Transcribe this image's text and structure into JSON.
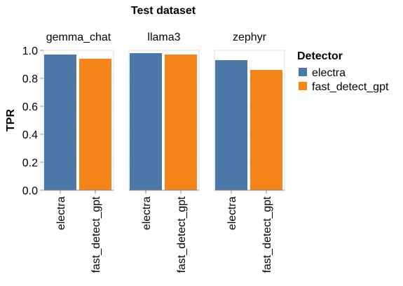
{
  "chart_data": {
    "type": "bar",
    "title": "Test dataset",
    "ylabel": "TPR",
    "xlabel": "",
    "ylim": [
      0,
      1.0
    ],
    "yticks": [
      "0.0",
      "0.2",
      "0.4",
      "0.6",
      "0.8",
      "1.0"
    ],
    "grid": true,
    "legend": {
      "title": "Detector",
      "position": "right",
      "entries": [
        {
          "name": "electra",
          "color": "#4c78a8"
        },
        {
          "name": "fast_detect_gpt",
          "color": "#f58518"
        }
      ]
    },
    "categories": [
      "electra",
      "fast_detect_gpt"
    ],
    "facets": [
      {
        "name": "gemma_chat",
        "values": [
          0.97,
          0.94
        ]
      },
      {
        "name": "llama3",
        "values": [
          0.98,
          0.97
        ]
      },
      {
        "name": "zephyr",
        "values": [
          0.93,
          0.86
        ]
      }
    ]
  }
}
